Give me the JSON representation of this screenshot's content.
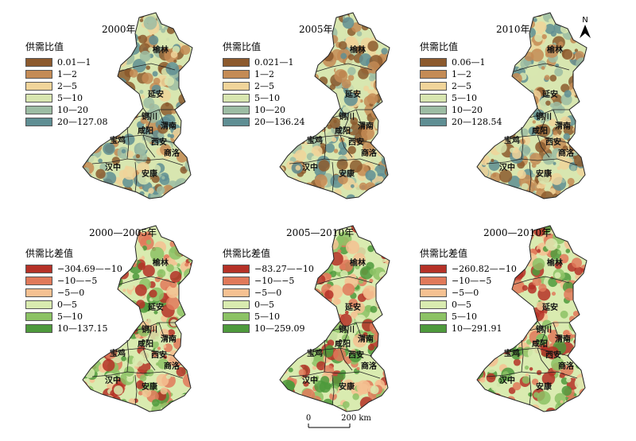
{
  "panels": [
    {
      "title": "2000年",
      "legend_title": "供需比值",
      "scheme": "ratio",
      "classes": [
        "0.01—1",
        "1—2",
        "2—5",
        "5—10",
        "10—20",
        "20—127.08"
      ]
    },
    {
      "title": "2005年",
      "legend_title": "供需比值",
      "scheme": "ratio",
      "classes": [
        "0.021—1",
        "1—2",
        "2—5",
        "5—10",
        "10—20",
        "20—136.24"
      ]
    },
    {
      "title": "2010年",
      "legend_title": "供需比值",
      "scheme": "ratio",
      "classes": [
        "0.06—1",
        "1—2",
        "2—5",
        "5—10",
        "10—20",
        "20—128.54"
      ]
    },
    {
      "title": "2000—2005年",
      "legend_title": "供需比差值",
      "scheme": "diff",
      "classes": [
        "−304.69—−10",
        "−10—−5",
        "−5—0",
        "0—5",
        "5—10",
        "10—137.15"
      ]
    },
    {
      "title": "2005—2010年",
      "legend_title": "供需比差值",
      "scheme": "diff",
      "classes": [
        "−83.27—−10",
        "−10—−5",
        "−5—0",
        "0—5",
        "5—10",
        "10—259.09"
      ]
    },
    {
      "title": "2000—2010年",
      "legend_title": "供需比差值",
      "scheme": "diff",
      "classes": [
        "−260.82—−10",
        "−10—−5",
        "−5—0",
        "0—5",
        "5—10",
        "10—291.91"
      ]
    }
  ],
  "colors": {
    "ratio": [
      "#8c5a2e",
      "#c48b55",
      "#f0d49a",
      "#d8e6b0",
      "#9cbca3",
      "#5f8e93"
    ],
    "diff": [
      "#b53127",
      "#e0795a",
      "#f5c192",
      "#d9ebb0",
      "#8cc265",
      "#4e9a3c"
    ]
  },
  "cities": [
    "榆林",
    "延安",
    "铜川",
    "渭南",
    "咸阳",
    "宝鸡",
    "西安",
    "商洛",
    "汉中",
    "安康"
  ],
  "north_label": "N",
  "scale": {
    "start": "0",
    "end": "200 km"
  }
}
